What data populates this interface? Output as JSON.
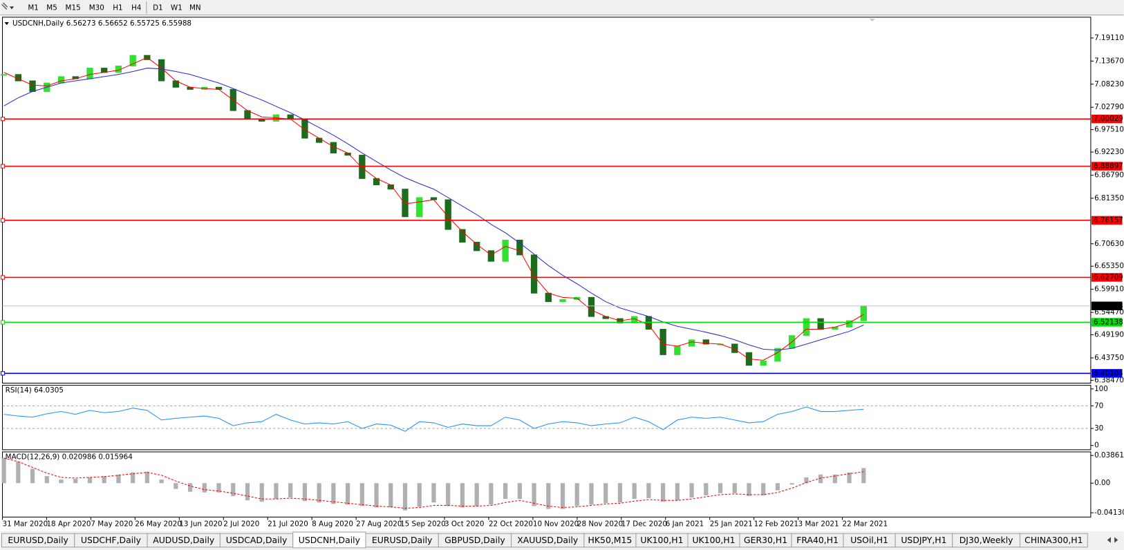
{
  "toolbar": {
    "timeframes": [
      "M1",
      "M5",
      "M15",
      "M30",
      "H1",
      "H4",
      "D1",
      "W1",
      "MN"
    ]
  },
  "chart_data": [
    {
      "type": "candlestick",
      "title": "USDCNH,Daily",
      "quote": [
        6.56273,
        6.56652,
        6.55725
      ],
      "date_labels": [
        "31 Mar 2020",
        "18 Apr 2020",
        "7 May 2020",
        "26 May 2020",
        "13 Jun 2020",
        "2 Jul 2020",
        "21 Jul 2020",
        "8 Aug 2020",
        "27 Aug 2020",
        "15 Sep 2020",
        "3 Oct 2020",
        "22 Oct 2020",
        "10 Nov 2020",
        "28 Nov 2020",
        "17 Dec 2020",
        "6 Jan 2021",
        "25 Jan 2021",
        "12 Feb 2021",
        "3 Mar 2021",
        "22 Mar 2021"
      ],
      "close": [
        7.105,
        7.09,
        7.065,
        7.085,
        7.1,
        7.095,
        7.12,
        7.11,
        7.125,
        7.15,
        7.14,
        7.09,
        7.075,
        7.07,
        7.075,
        7.07,
        7.02,
        7.0,
        6.995,
        7.01,
        7.0,
        6.955,
        6.945,
        6.92,
        6.915,
        6.86,
        6.845,
        6.835,
        6.77,
        6.815,
        6.81,
        6.74,
        6.71,
        6.69,
        6.665,
        6.715,
        6.68,
        6.59,
        6.57,
        6.575,
        6.58,
        6.535,
        6.53,
        6.52,
        6.535,
        6.505,
        6.445,
        6.465,
        6.48,
        6.47,
        6.47,
        6.45,
        6.42,
        6.43,
        6.46,
        6.49,
        6.53,
        6.505,
        6.51,
        6.525,
        6.55988
      ],
      "up_color": "#32e032",
      "down_color": "#1d6b1d",
      "series": [
        {
          "color": "#ff0000",
          "values": [
            7.11,
            7.095,
            7.08,
            7.078,
            7.09,
            7.095,
            7.105,
            7.11,
            7.115,
            7.13,
            7.145,
            7.12,
            7.09,
            7.075,
            7.072,
            7.07,
            7.045,
            7.02,
            7.005,
            7.003,
            7.0,
            6.975,
            6.955,
            6.935,
            6.92,
            6.885,
            6.86,
            6.845,
            6.8,
            6.805,
            6.81,
            6.77,
            6.735,
            6.705,
            6.68,
            6.7,
            6.69,
            6.63,
            6.59,
            6.58,
            6.578,
            6.55,
            6.535,
            6.525,
            6.53,
            6.515,
            6.47,
            6.465,
            6.475,
            6.472,
            6.47,
            6.458,
            6.435,
            6.432,
            6.45,
            6.475,
            6.505,
            6.505,
            6.51,
            6.52,
            6.54
          ]
        },
        {
          "color": "#2a2ad0",
          "values": [
            7.031,
            7.05,
            7.065,
            7.075,
            7.085,
            7.09,
            7.095,
            7.1,
            7.105,
            7.112,
            7.12,
            7.118,
            7.112,
            7.105,
            7.095,
            7.085,
            7.072,
            7.058,
            7.045,
            7.03,
            7.015,
            6.998,
            6.98,
            6.962,
            6.942,
            6.92,
            6.9,
            6.88,
            6.862,
            6.848,
            6.835,
            6.815,
            6.795,
            6.775,
            6.752,
            6.732,
            6.708,
            6.682,
            6.655,
            6.632,
            6.612,
            6.59,
            6.57,
            6.555,
            6.545,
            6.535,
            6.522,
            6.512,
            6.505,
            6.498,
            6.49,
            6.48,
            6.468,
            6.458,
            6.456,
            6.46,
            6.47,
            6.48,
            6.49,
            6.5,
            6.515
          ]
        }
      ],
      "levels": [
        {
          "value": 7.00029,
          "color": "#ff0000"
        },
        {
          "value": 6.88897,
          "color": "#ff0000"
        },
        {
          "value": 6.76157,
          "color": "#ff0000"
        },
        {
          "value": 6.62709,
          "color": "#ff0000"
        },
        {
          "value": 6.52138,
          "color": "#00dd00"
        },
        {
          "value": 6.40104,
          "color": "#0000ff"
        }
      ],
      "ylim": [
        6.378,
        7.24
      ],
      "yticks": [
        {
          "value": 7.1911,
          "label": "7.19110"
        },
        {
          "value": 7.1367,
          "label": "7.13670"
        },
        {
          "value": 7.0823,
          "label": "7.08230"
        },
        {
          "value": 7.0279,
          "label": "7.02790"
        },
        {
          "value": 6.9751,
          "label": "6.97510"
        },
        {
          "value": 6.9223,
          "label": "6.92230"
        },
        {
          "value": 6.8679,
          "label": "6.86790"
        },
        {
          "value": 6.8135,
          "label": "6.81350"
        },
        {
          "value": 6.7063,
          "label": "6.70630"
        },
        {
          "value": 6.6535,
          "label": "6.65350"
        },
        {
          "value": 6.5991,
          "label": "6.59910"
        },
        {
          "value": 6.5447,
          "label": "6.54470"
        },
        {
          "value": 6.4919,
          "label": "6.49190"
        },
        {
          "value": 6.4375,
          "label": "6.43750"
        },
        {
          "value": 6.3847,
          "label": "6.38470"
        }
      ]
    },
    {
      "type": "line",
      "title": "RSI(14)",
      "color": "#1e90ff",
      "values": [
        55,
        52,
        50,
        56,
        60,
        55,
        62,
        58,
        60,
        66,
        62,
        45,
        48,
        50,
        52,
        48,
        35,
        40,
        42,
        55,
        45,
        38,
        40,
        38,
        42,
        30,
        38,
        36,
        25,
        42,
        40,
        32,
        38,
        35,
        35,
        50,
        45,
        30,
        38,
        42,
        40,
        35,
        38,
        40,
        50,
        42,
        28,
        45,
        50,
        48,
        50,
        45,
        40,
        42,
        55,
        60,
        68,
        60,
        60,
        62,
        64.0305
      ],
      "levels": [
        70,
        30
      ],
      "ylim": [
        0,
        100
      ],
      "yticks": [
        100,
        70,
        30,
        0
      ]
    },
    {
      "type": "bar",
      "title": "MACD(12,26,9)",
      "color": "#b0b0b0",
      "values": [
        0.035,
        0.03,
        0.02,
        0.01,
        0.005,
        0.006,
        0.008,
        0.01,
        0.012,
        0.015,
        0.016,
        0.005,
        -0.008,
        -0.012,
        -0.013,
        -0.013,
        -0.018,
        -0.024,
        -0.026,
        -0.022,
        -0.02,
        -0.025,
        -0.027,
        -0.029,
        -0.03,
        -0.032,
        -0.034,
        -0.034,
        -0.038,
        -0.033,
        -0.027,
        -0.032,
        -0.034,
        -0.032,
        -0.03,
        -0.022,
        -0.022,
        -0.032,
        -0.036,
        -0.036,
        -0.032,
        -0.03,
        -0.028,
        -0.027,
        -0.022,
        -0.021,
        -0.026,
        -0.024,
        -0.02,
        -0.017,
        -0.014,
        -0.014,
        -0.018,
        -0.017,
        -0.01,
        -0.002,
        0.008,
        0.012,
        0.012,
        0.015,
        0.020986
      ],
      "signal": {
        "color": "#ff0000",
        "values": [
          0.035,
          0.03,
          0.022,
          0.014,
          0.008,
          0.007,
          0.008,
          0.009,
          0.011,
          0.013,
          0.015,
          0.011,
          0.003,
          -0.004,
          -0.009,
          -0.011,
          -0.014,
          -0.018,
          -0.022,
          -0.022,
          -0.021,
          -0.022,
          -0.024,
          -0.026,
          -0.028,
          -0.03,
          -0.032,
          -0.033,
          -0.035,
          -0.034,
          -0.031,
          -0.031,
          -0.032,
          -0.032,
          -0.031,
          -0.027,
          -0.024,
          -0.028,
          -0.032,
          -0.034,
          -0.033,
          -0.031,
          -0.029,
          -0.028,
          -0.025,
          -0.023,
          -0.024,
          -0.024,
          -0.022,
          -0.019,
          -0.016,
          -0.015,
          -0.016,
          -0.016,
          -0.013,
          -0.007,
          0.001,
          0.007,
          0.01,
          0.013,
          0.015964
        ]
      },
      "ylim": [
        -0.041306,
        0.038615
      ],
      "yticks": [
        0.038615,
        {
          "value": 0,
          "label": "0.00"
        },
        -0.041306
      ]
    }
  ],
  "tabs": [
    "EURUSD,Daily",
    "USDCHF,Daily",
    "AUDUSD,Daily",
    "USDCAD,Daily",
    "USDCNH,Daily",
    "EURUSD,Daily",
    "GBPUSD,Daily",
    "XAUUSD,Daily",
    "HK50,M15",
    "UK100,H1",
    "UK100,H1",
    "GER30,H1",
    "FRA40,H1",
    "USOil,H1",
    "USDJPY,H1",
    "DJ30,Weekly",
    "CHINA300,H1"
  ],
  "active_tab": 4
}
